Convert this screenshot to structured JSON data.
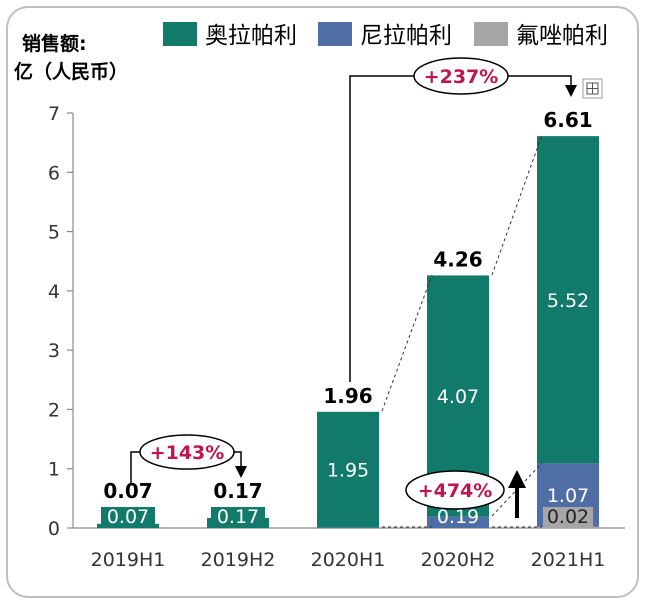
{
  "chart_data": {
    "type": "bar",
    "stacked": true,
    "ylabel_line1": "销售额:",
    "ylabel_line2": "亿（人民币）",
    "ylim": [
      0,
      7
    ],
    "yticks": [
      "0",
      "1",
      "2",
      "3",
      "4",
      "5",
      "6",
      "7"
    ],
    "categories": [
      "2019H1",
      "2019H2",
      "2020H1",
      "2020H2",
      "2021H1"
    ],
    "series": [
      {
        "name": "氟唑帕利",
        "color": "#a6a6a6",
        "values": [
          0,
          0,
          0,
          0,
          0.02
        ],
        "labels": [
          "",
          "",
          "",
          "",
          "0.02"
        ]
      },
      {
        "name": "尼拉帕利",
        "color": "#4f6ea8",
        "values": [
          0,
          0,
          0.01,
          0.19,
          1.07
        ],
        "labels": [
          "",
          "",
          "",
          "0.19",
          "1.07"
        ]
      },
      {
        "name": "奥拉帕利",
        "color": "#127a6b",
        "values": [
          0.07,
          0.17,
          1.95,
          4.07,
          5.52
        ],
        "labels": [
          "0.07",
          "0.17",
          "1.95",
          "4.07",
          "5.52"
        ]
      }
    ],
    "totals": [
      "0.07",
      "0.17",
      "1.96",
      "4.26",
      "6.61"
    ],
    "legend": [
      {
        "name": "奥拉帕利",
        "color": "#127a6b"
      },
      {
        "name": "尼拉帕利",
        "color": "#4f6ea8"
      },
      {
        "name": "氟唑帕利",
        "color": "#a6a6a6"
      }
    ],
    "annotations": {
      "growth_2019": "+143%",
      "growth_2021": "+237%",
      "growth_nila": "+474%"
    }
  }
}
